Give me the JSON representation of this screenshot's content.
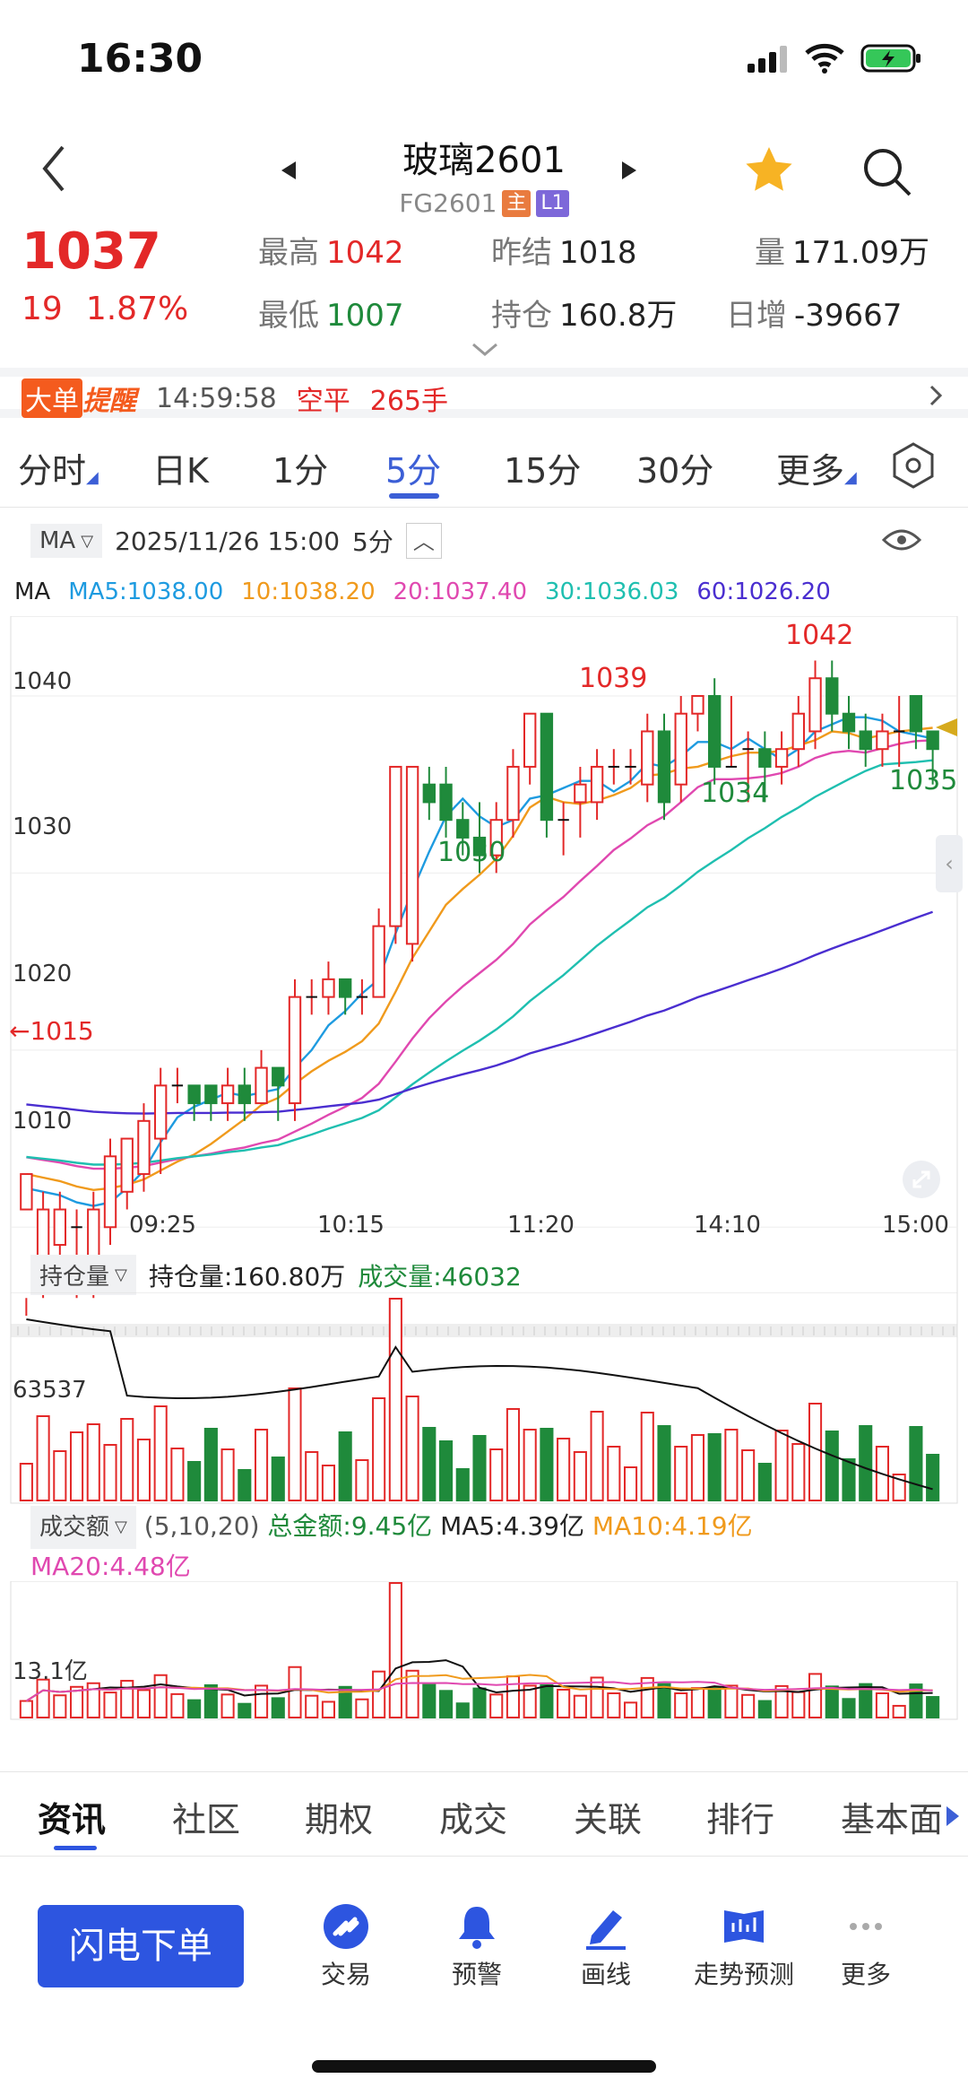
{
  "status": {
    "time": "16:30"
  },
  "header": {
    "title": "玻璃2601",
    "code": "FG2601",
    "tag_main": "主",
    "tag_l1": "L1"
  },
  "quote": {
    "price": "1037",
    "change": "19",
    "change_pct": "1.87%",
    "high_label": "最高",
    "high": "1042",
    "low_label": "最低",
    "low": "1007",
    "prev_label": "昨结",
    "prev": "1018",
    "oi_label": "持仓",
    "oi": "160.8万",
    "vol_label": "量",
    "vol": "171.09万",
    "daily_label": "日增",
    "daily": "-39667"
  },
  "alert": {
    "badge1": "大单",
    "badge2": "提醒",
    "time": "14:59:58",
    "action": "空平",
    "qty": "265手"
  },
  "period_tabs": {
    "t0": "分时",
    "t1": "日K",
    "t2": "1分",
    "t3": "5分",
    "t4": "15分",
    "t5": "30分",
    "t6": "更多"
  },
  "chart_header": {
    "indicator": "MA",
    "datetime": "2025/11/26 15:00",
    "period": "5分"
  },
  "ma_legend": {
    "lbl": "MA",
    "ma5": "MA5:1038.00",
    "ma10": "10:1038.20",
    "ma20": "20:1037.40",
    "ma30": "30:1036.03",
    "ma60": "60:1026.20"
  },
  "price_axis": {
    "p1040": "1040",
    "p1030": "1030",
    "p1020": "1020",
    "p1010": "1010"
  },
  "annotations": {
    "a1042": "1042",
    "a1039": "1039",
    "a1030": "1030",
    "a1034": "1034",
    "a1035": "1035",
    "a1015": "←1015"
  },
  "time_axis": {
    "t1": "09:25",
    "t2": "10:15",
    "t3": "11:20",
    "t4": "14:10",
    "t5": "15:00"
  },
  "oi_panel": {
    "chip": "持仓量",
    "oi_text": "持仓量:160.80万",
    "vol_text": "成交量:46032",
    "axis": "63537"
  },
  "amt_panel": {
    "chip": "成交额",
    "params": "(5,10,20)",
    "total": "总金额:9.45亿",
    "ma5": "MA5:4.39亿",
    "ma10": "MA10:4.19亿",
    "ma20": "MA20:4.48亿",
    "axis": "13.1亿"
  },
  "bottom_tabs": {
    "b0": "资讯",
    "b1": "社区",
    "b2": "期权",
    "b3": "成交",
    "b4": "关联",
    "b5": "排行",
    "b6": "基本面"
  },
  "actions": {
    "order": "闪电下单",
    "trade": "交易",
    "warn": "预警",
    "draw": "画线",
    "trend": "走势预测",
    "more": "更多"
  },
  "colors": {
    "up": "#e32828",
    "down": "#1f8a3b",
    "ma5": "#1e9be0",
    "ma10": "#f09a1c",
    "ma20": "#e048b0",
    "ma30": "#1fbfb0",
    "ma60": "#4a2ed0",
    "accent": "#2d55e0"
  },
  "chart_data": {
    "type": "candlestick",
    "period": "5分",
    "candles": [
      [
        1011,
        1013,
        1006,
        1005
      ],
      [
        1007,
        1011,
        1012,
        1006
      ],
      [
        1009,
        1011,
        1012,
        1008
      ],
      [
        1010,
        1010,
        1011,
        1006
      ],
      [
        1007,
        1011,
        1012,
        1006
      ],
      [
        1010,
        1014,
        1015,
        1009
      ],
      [
        1012,
        1015,
        1015,
        1011
      ],
      [
        1013,
        1016,
        1017,
        1012
      ],
      [
        1015,
        1018,
        1019,
        1013
      ],
      [
        1018,
        1018,
        1019,
        1017
      ],
      [
        1018,
        1017,
        1018,
        1016
      ],
      [
        1018,
        1017,
        1018,
        1016
      ],
      [
        1017,
        1018,
        1019,
        1016
      ],
      [
        1018,
        1017,
        1019,
        1016
      ],
      [
        1017,
        1019,
        1020,
        1017
      ],
      [
        1019,
        1018,
        1019,
        1016
      ],
      [
        1017,
        1023,
        1024,
        1016
      ],
      [
        1023,
        1023,
        1024,
        1022
      ],
      [
        1023,
        1024,
        1025,
        1022
      ],
      [
        1024,
        1023,
        1024,
        1022
      ],
      [
        1023,
        1023,
        1024,
        1022
      ],
      [
        1023,
        1027,
        1028,
        1023
      ],
      [
        1027,
        1036,
        1036,
        1026
      ],
      [
        1026,
        1036,
        1036,
        1025
      ],
      [
        1035,
        1034,
        1036,
        1033
      ],
      [
        1035,
        1033,
        1036,
        1032
      ],
      [
        1033,
        1032,
        1034,
        1031
      ],
      [
        1032,
        1031,
        1034,
        1030
      ],
      [
        1031,
        1033,
        1034,
        1030
      ],
      [
        1033,
        1036,
        1037,
        1032
      ],
      [
        1036,
        1039,
        1039,
        1035
      ],
      [
        1039,
        1033,
        1039,
        1032
      ],
      [
        1033,
        1033,
        1034,
        1031
      ],
      [
        1034,
        1035,
        1036,
        1032
      ],
      [
        1034,
        1036,
        1037,
        1033
      ],
      [
        1036,
        1036,
        1037,
        1035
      ],
      [
        1036,
        1036,
        1037,
        1035
      ],
      [
        1035,
        1038,
        1039,
        1034
      ],
      [
        1038,
        1034,
        1039,
        1033
      ],
      [
        1035,
        1039,
        1040,
        1034
      ],
      [
        1039,
        1040,
        1040,
        1038
      ],
      [
        1040,
        1036,
        1041,
        1035
      ],
      [
        1036,
        1036,
        1040,
        1036
      ],
      [
        1037,
        1037,
        1038,
        1034
      ],
      [
        1037,
        1036,
        1038,
        1034
      ],
      [
        1036,
        1037,
        1038,
        1035
      ],
      [
        1037,
        1039,
        1040,
        1036
      ],
      [
        1038,
        1041,
        1042,
        1037
      ],
      [
        1041,
        1039,
        1042,
        1038
      ],
      [
        1039,
        1038,
        1040,
        1037
      ],
      [
        1038,
        1037,
        1039,
        1036
      ],
      [
        1037,
        1038,
        1039,
        1036
      ],
      [
        1038,
        1038,
        1040,
        1036
      ],
      [
        1040,
        1038,
        1040,
        1037
      ],
      [
        1038,
        1037,
        1038,
        1035
      ]
    ],
    "ylim": [
      1005,
      1044
    ],
    "x_ticks": [
      "09:25",
      "10:15",
      "11:20",
      "14:10",
      "15:00"
    ]
  }
}
